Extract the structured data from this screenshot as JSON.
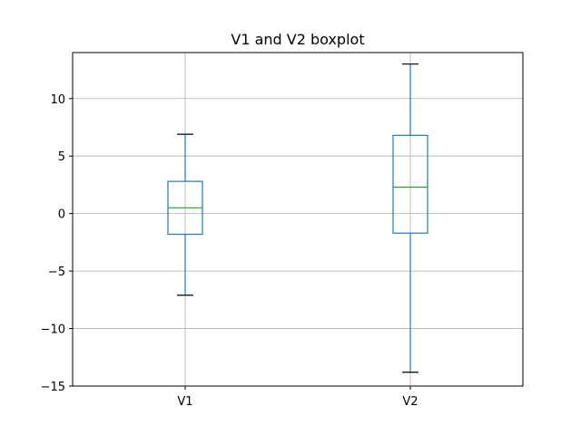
{
  "chart_data": {
    "type": "boxplot",
    "title": "V1 and V2 boxplot",
    "xlabel": "",
    "ylabel": "",
    "ylim": [
      -15,
      14
    ],
    "yticks": [
      -15,
      -10,
      -5,
      0,
      5,
      10
    ],
    "grid": true,
    "categories": [
      "V1",
      "V2"
    ],
    "boxes": [
      {
        "label": "V1",
        "whisker_low": -7.1,
        "q1": -1.8,
        "median": 0.5,
        "q3": 2.8,
        "whisker_high": 6.9
      },
      {
        "label": "V2",
        "whisker_low": -13.8,
        "q1": -1.7,
        "median": 2.3,
        "q3": 6.8,
        "whisker_high": 13.0
      }
    ],
    "colors": {
      "box": "#1f77b4",
      "median": "#2ca02c",
      "cap": "#000000",
      "grid": "#b0b0b0"
    }
  }
}
